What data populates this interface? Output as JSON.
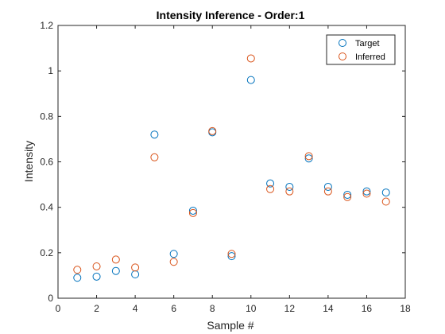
{
  "chart_data": {
    "type": "scatter",
    "title": "Intensity Inference - Order:1",
    "xlabel": "Sample #",
    "ylabel": "Intensity",
    "xlim": [
      0,
      18
    ],
    "ylim": [
      0,
      1.2
    ],
    "xticks": [
      "0",
      "2",
      "4",
      "6",
      "8",
      "10",
      "12",
      "14",
      "16",
      "18"
    ],
    "yticks": [
      "0",
      "0.2",
      "0.4",
      "0.6",
      "0.8",
      "1",
      "1.2"
    ],
    "grid": false,
    "legend_position": "top-right",
    "x": [
      1,
      2,
      3,
      4,
      5,
      6,
      7,
      8,
      9,
      10,
      11,
      12,
      13,
      14,
      15,
      16,
      17
    ],
    "series": [
      {
        "name": "Target",
        "color": "#0072BD",
        "values": [
          0.09,
          0.095,
          0.12,
          0.105,
          0.72,
          0.195,
          0.385,
          0.73,
          0.185,
          0.96,
          0.505,
          0.49,
          0.615,
          0.49,
          0.455,
          0.47,
          0.465
        ]
      },
      {
        "name": "Inferred",
        "color": "#D95319",
        "values": [
          0.125,
          0.14,
          0.17,
          0.135,
          0.62,
          0.16,
          0.375,
          0.735,
          0.195,
          1.055,
          0.48,
          0.47,
          0.625,
          0.47,
          0.445,
          0.46,
          0.425
        ]
      }
    ]
  }
}
